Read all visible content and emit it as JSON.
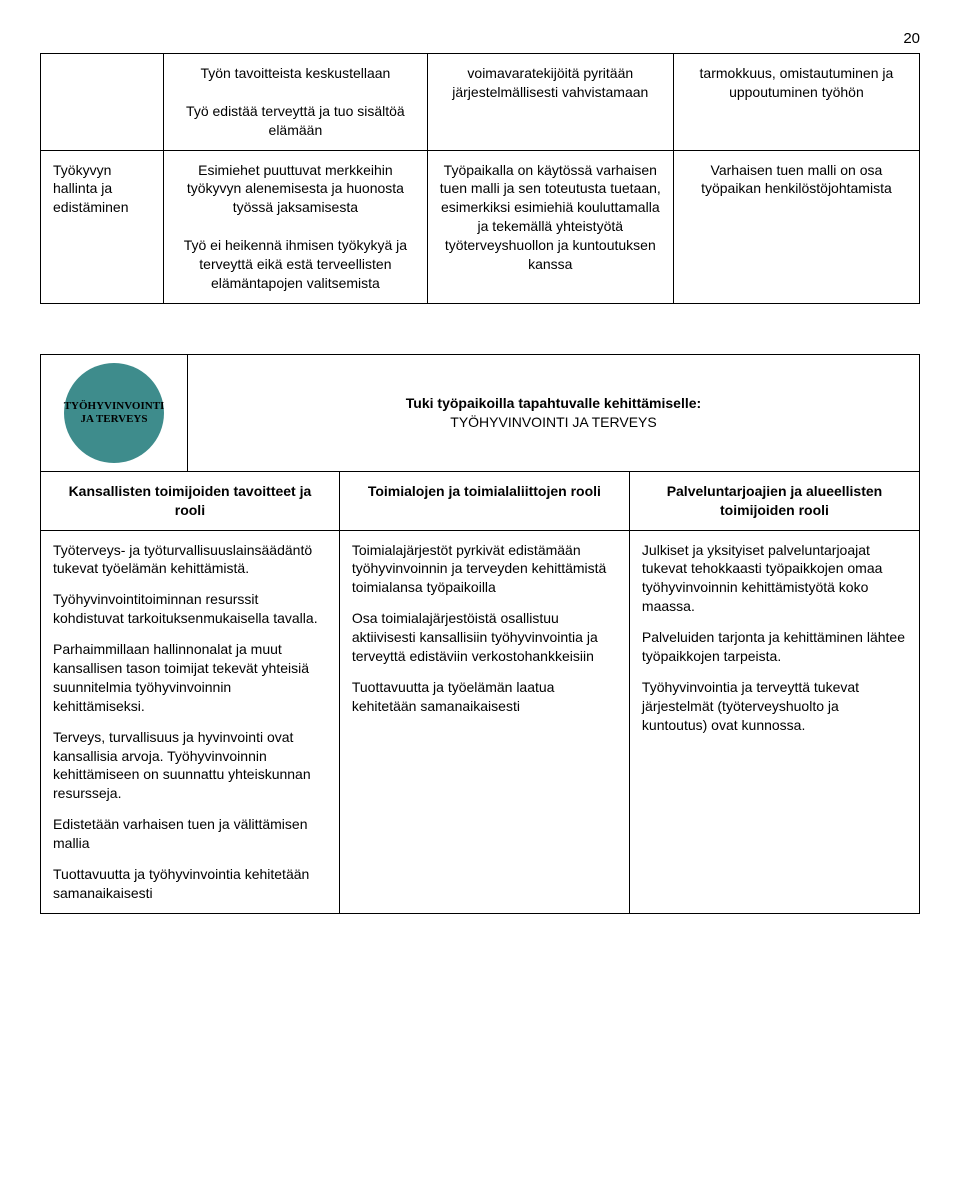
{
  "page_number": "20",
  "table1": {
    "row1": {
      "c1": "Työn tavoitteista keskustellaan\n\nTyö edistää terveyttä ja tuo sisältöä elämään",
      "c2": "voimavaratekijöitä pyritään järjestelmällisesti vahvistamaan",
      "c3": "tarmokkuus, omistautuminen ja uppoutuminen työhön"
    },
    "row2": {
      "c0": "Työkyvyn hallinta ja edistäminen",
      "c1": "Esimiehet puuttuvat merkkeihin työkyvyn alenemisesta ja huonosta työssä jaksamisesta\n\nTyö ei heikennä ihmisen työkykyä ja terveyttä eikä estä terveellisten elämäntapojen valitsemista",
      "c2": "Työpaikalla on käytössä varhaisen tuen malli ja sen toteutusta tuetaan, esimerkiksi esimiehiä kouluttamalla ja tekemällä yhteistyötä työterveyshuollon ja kuntoutuksen kanssa",
      "c3": "Varhaisen tuen malli on osa työpaikan henkilöstöjohtamista"
    }
  },
  "circle_label": "TYÖHYVINVOINTI JA TERVEYS",
  "section_title_line1": "Tuki työpaikoilla tapahtuvalle kehittämiselle:",
  "section_title_line2": "TYÖHYVINVOINTI JA TERVEYS",
  "headers": {
    "h1": "Kansallisten toimijoiden tavoitteet ja rooli",
    "h2": "Toimialojen ja toimialaliittojen rooli",
    "h3": "Palveluntarjoajien ja alueellisten toimijoiden rooli"
  },
  "body_row": {
    "c0": [
      "Työterveys- ja työturvallisuuslainsäädäntö tukevat työelämän kehittämistä.",
      "Työhyvinvointitoiminnan resurssit kohdistuvat tarkoituksenmukaisella tavalla.",
      "Parhaimmillaan hallinnonalat ja muut kansallisen tason toimijat tekevät yhteisiä suunnitelmia työhyvinvoinnin kehittämiseksi.",
      "Terveys, turvallisuus ja hyvinvointi ovat kansallisia arvoja. Työhyvinvoinnin kehittämiseen on suunnattu yhteiskunnan resursseja.",
      "Edistetään varhaisen tuen ja välittämisen mallia",
      "Tuottavuutta ja työhyvinvointia kehitetään samanaikaisesti"
    ],
    "c1": [
      "Toimialajärjestöt pyrkivät edistämään työhyvinvoinnin ja terveyden kehittämistä toimialansa työpaikoilla",
      "Osa toimialajärjestöistä osallistuu aktiivisesti kansallisiin työhyvinvointia ja terveyttä edistäviin verkostohankkeisiin",
      "Tuottavuutta ja työelämän laatua kehitetään samanaikaisesti"
    ],
    "c2": [
      "Julkiset ja yksityiset palveluntarjoajat tukevat tehokkaasti työpaikkojen omaa työhyvinvoinnin kehittämistyötä koko maassa.",
      "Palveluiden tarjonta ja kehittäminen lähtee työpaikkojen tarpeista.",
      "Työhyvinvointia ja terveyttä tukevat järjestelmät (työterveyshuolto ja kuntoutus) ovat kunnossa."
    ]
  },
  "colors": {
    "circle_bg": "#3e8c8c",
    "border": "#000000",
    "text": "#000000",
    "background": "#ffffff"
  }
}
